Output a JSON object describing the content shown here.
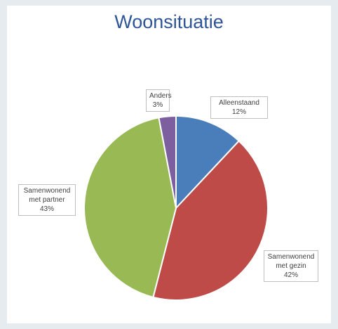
{
  "chart_data": {
    "type": "pie",
    "title": "Woonsituatie",
    "categories": [
      "Alleenstaand",
      "Samenwonend met gezin",
      "Samenwonend met partner",
      "Anders"
    ],
    "values": [
      12,
      42,
      43,
      3
    ],
    "value_labels": [
      "12%",
      "42%",
      "43%",
      "3%"
    ],
    "colors": [
      "#4a7ebb",
      "#be4b48",
      "#98b954",
      "#7d5fa0"
    ]
  }
}
